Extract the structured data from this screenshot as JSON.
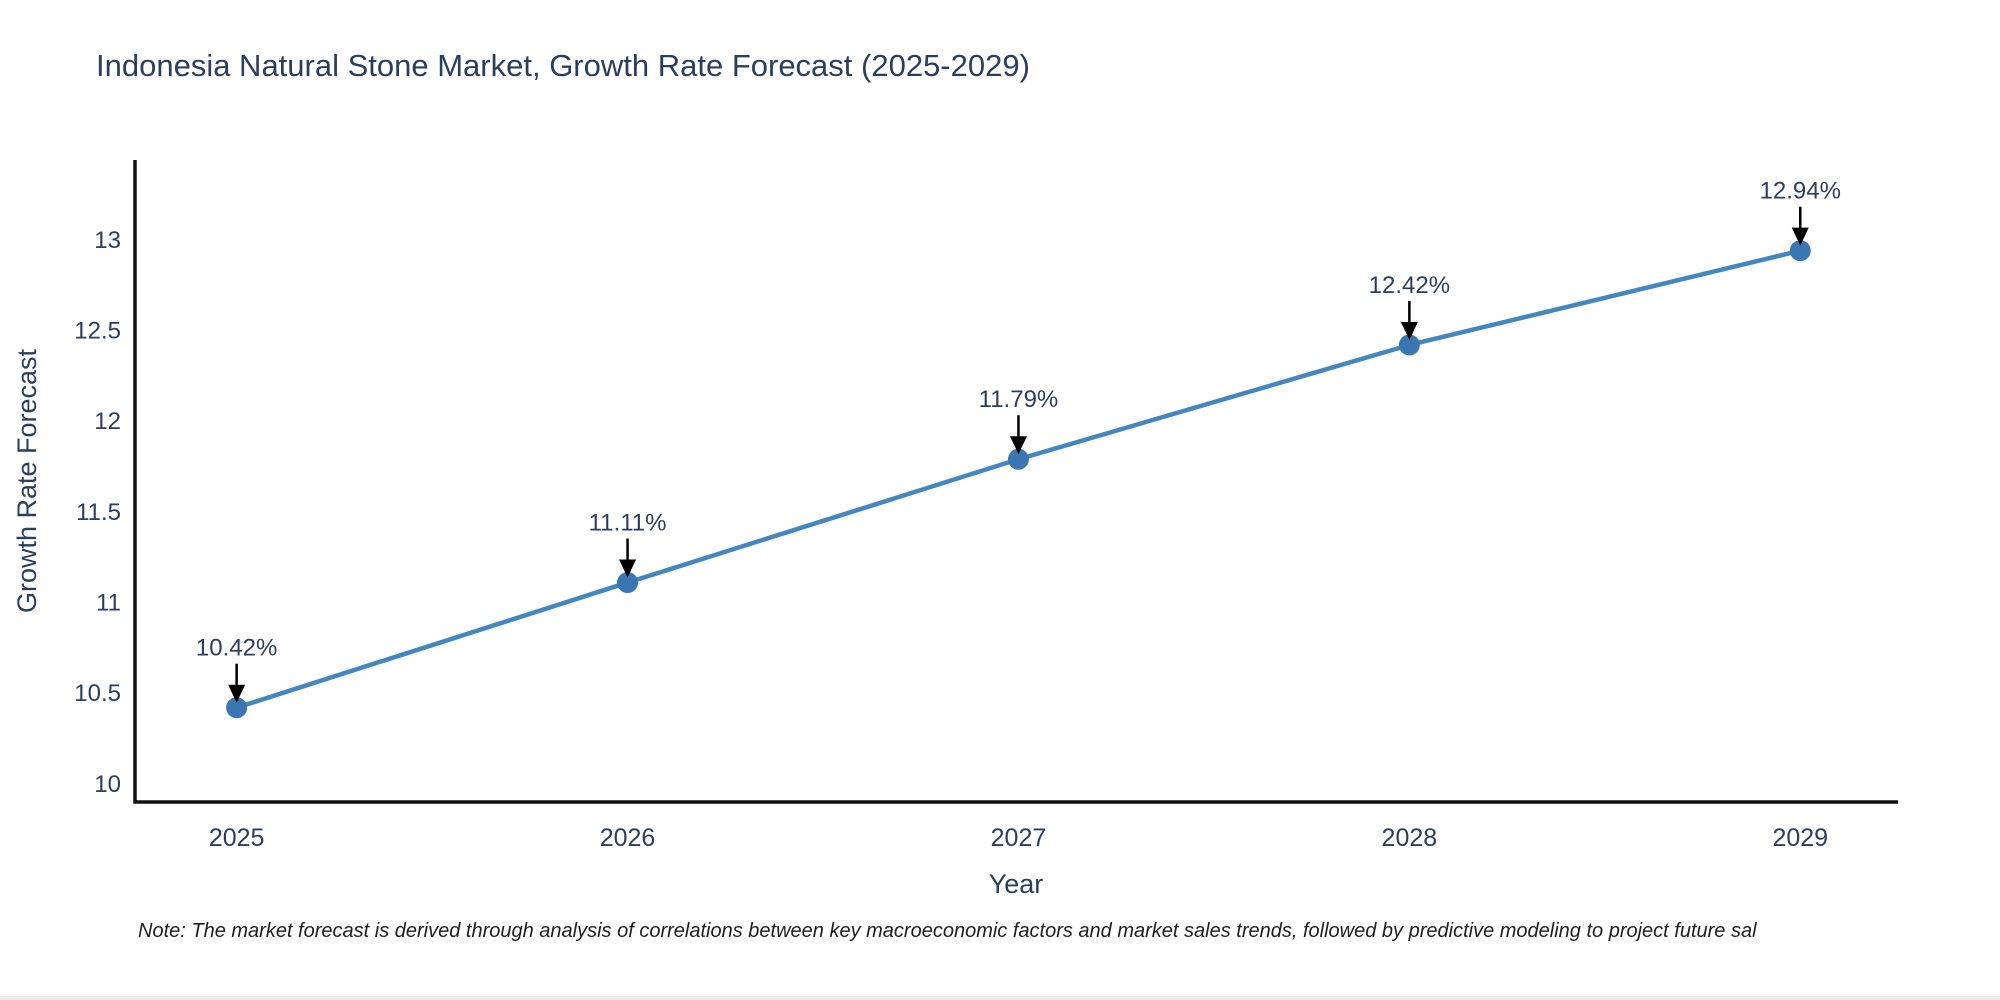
{
  "chart_data": {
    "type": "line",
    "title": "Indonesia Natural Stone Market, Growth Rate Forecast (2025-2029)",
    "xlabel": "Year",
    "ylabel": "Growth Rate Forecast",
    "x": [
      2025,
      2026,
      2027,
      2028,
      2029
    ],
    "series": [
      {
        "name": "Growth Rate Forecast",
        "values": [
          10.42,
          11.11,
          11.79,
          12.42,
          12.94
        ],
        "point_labels": [
          "10.42%",
          "11.11%",
          "11.79%",
          "12.42%",
          "12.94%"
        ]
      }
    ],
    "xtick_labels": [
      "2025",
      "2026",
      "2027",
      "2028",
      "2029"
    ],
    "yticks": [
      10,
      10.5,
      11,
      11.5,
      12,
      12.5,
      13
    ],
    "ytick_labels": [
      "10",
      "10.5",
      "11",
      "11.5",
      "12",
      "12.5",
      "13"
    ],
    "xlim": [
      2024.74,
      2029.25
    ],
    "ylim": [
      9.9,
      13.44
    ],
    "grid": false,
    "legend": "none",
    "annotations": "value labels with downward arrows above each point",
    "colors": {
      "line": "#4386c0",
      "marker": "#3a77b2",
      "axis": "#111111",
      "text": "#2a3f5f",
      "arrow": "#000000"
    }
  },
  "note": {
    "text": "Note: The market forecast is derived through analysis of correlations between key macroeconomic factors and market sales trends, followed by predictive modeling to project future sal"
  }
}
